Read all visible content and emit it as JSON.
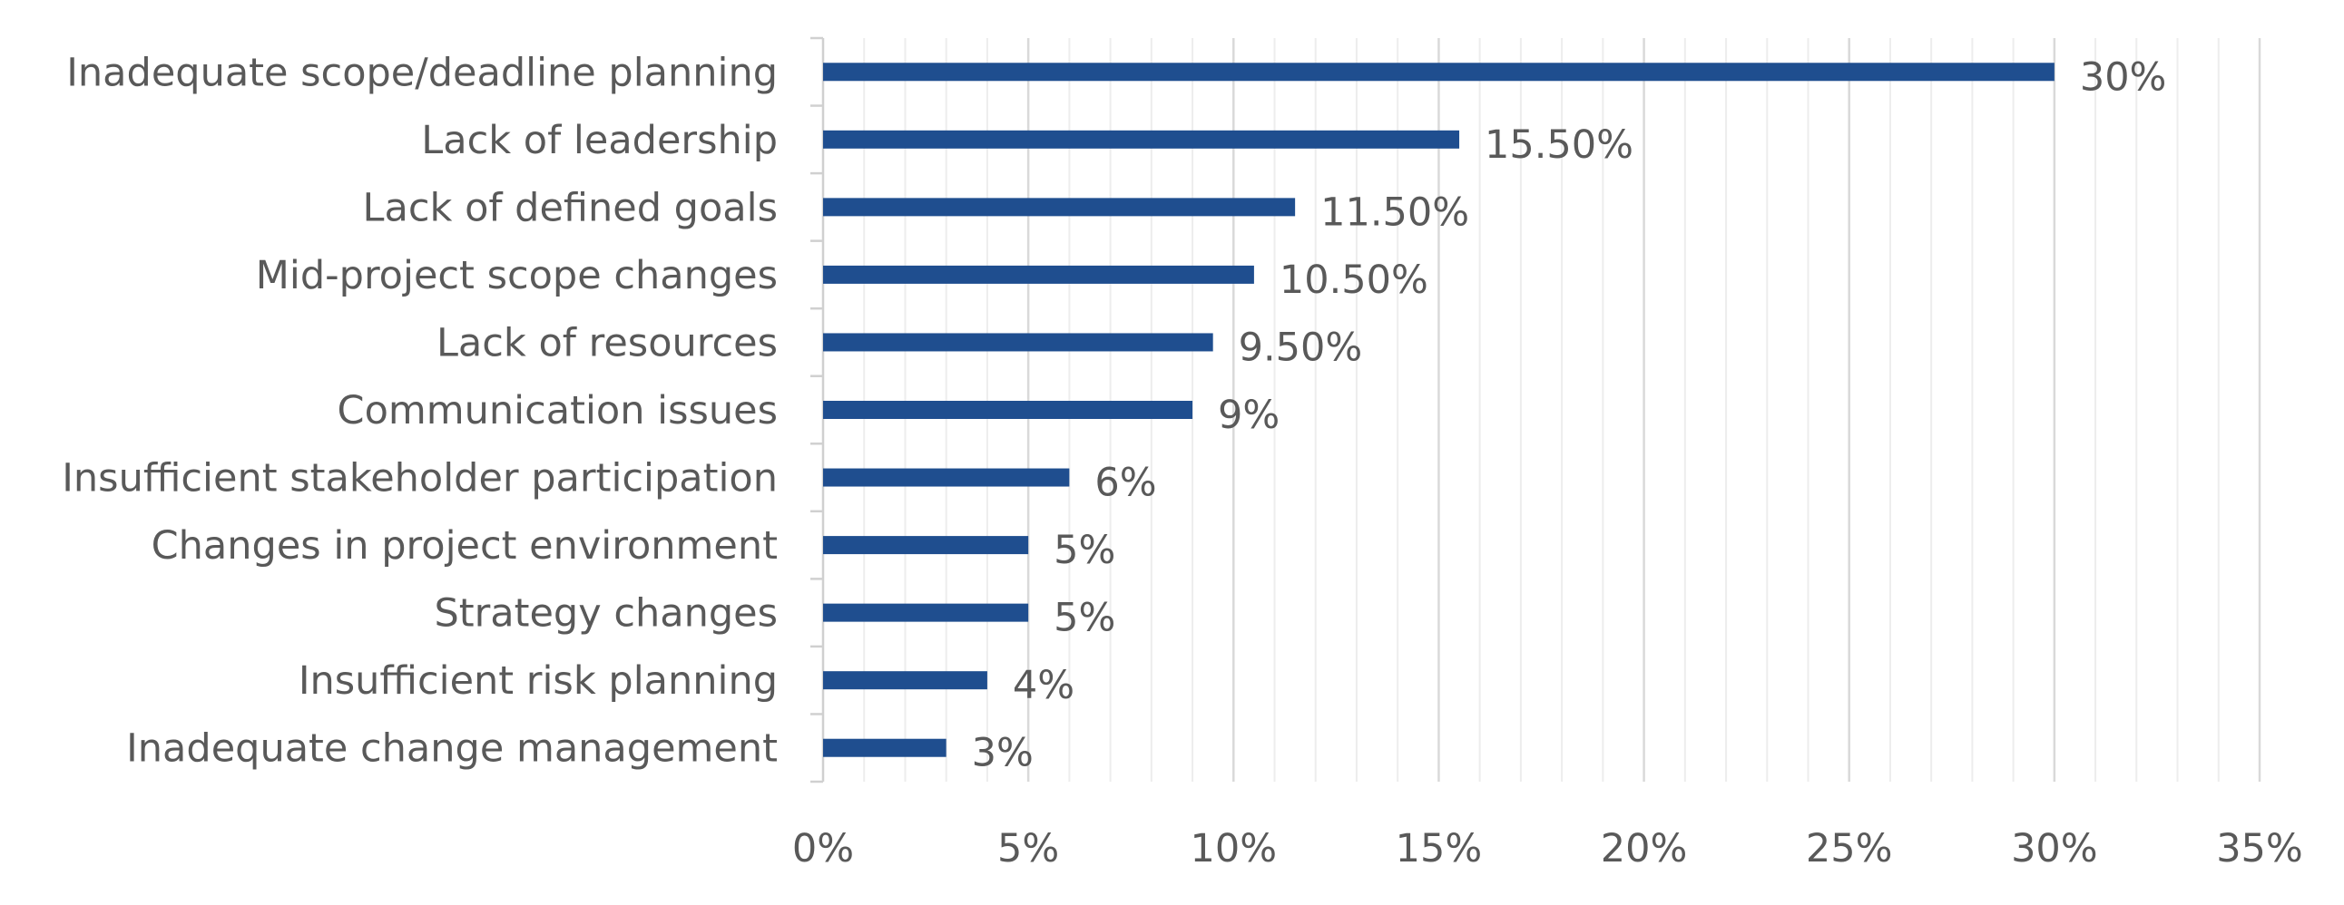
{
  "chart_data": {
    "type": "bar",
    "orientation": "horizontal",
    "title": "",
    "xlabel": "",
    "ylabel": "",
    "categories": [
      "Inadequate scope/deadline planning",
      "Lack of leadership",
      "Lack of defined goals",
      "Mid-project scope changes",
      "Lack of resources",
      "Communication issues",
      "Insufficient stakeholder participation",
      "Changes in project environment",
      "Strategy changes",
      "Insufficient risk planning",
      "Inadequate change management"
    ],
    "values": [
      30,
      15.5,
      11.5,
      10.5,
      9.5,
      9,
      6,
      5,
      5,
      4,
      3
    ],
    "data_labels": [
      "30%",
      "15.50%",
      "11.50%",
      "10.50%",
      "9.50%",
      "9%",
      "6%",
      "5%",
      "5%",
      "4%",
      "3%"
    ],
    "xlim": [
      0,
      35
    ],
    "x_ticks": [
      0,
      5,
      10,
      15,
      20,
      25,
      30,
      35
    ],
    "x_tick_labels": [
      "0%",
      "5%",
      "10%",
      "15%",
      "20%",
      "25%",
      "30%",
      "35%"
    ],
    "grid": "vertical",
    "minor_grid": true,
    "legend": "none",
    "colors": {
      "bar": "#1F4E8F",
      "text": "#595959",
      "grid": "#D9D9D9",
      "axis": "#D0D0D0"
    }
  }
}
